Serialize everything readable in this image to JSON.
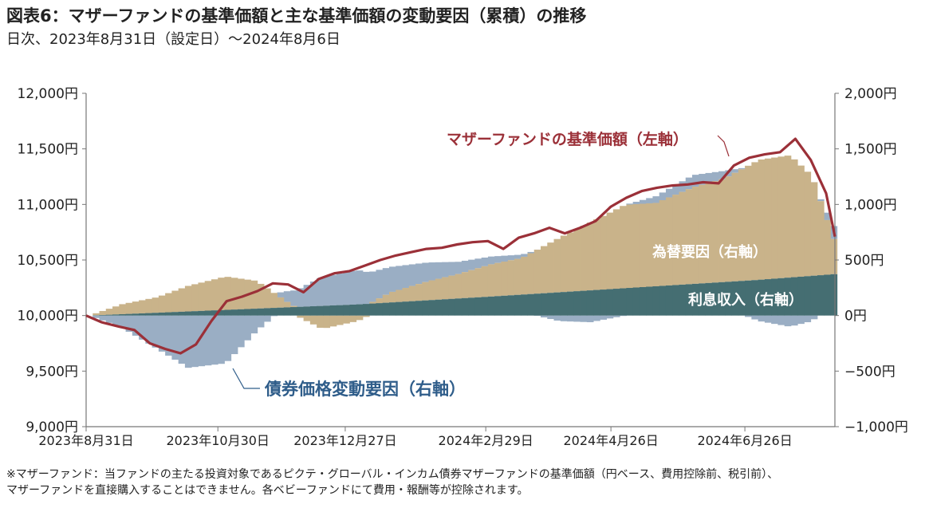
{
  "header": {
    "title": "図表6：マザーファンドの基準価額と主な基準価額の変動要因（累積）の推移",
    "subtitle": "日次、2023年8月31日（設定日）～2024年8月6日"
  },
  "footnote": {
    "line1": "※マザーファンド：当ファンドの主たる投資対象であるピクテ・グローバル・インカム債券マザーファンドの基準価額（円ベース、費用控除前、税引前）、",
    "line2": "マザーファンドを直接購入することはできません。各ベビーファンドにて費用・報酬等が控除されます。"
  },
  "colors": {
    "nav_line": "#9b3038",
    "fx": "#c9b38a",
    "bond": "#9aaec4",
    "interest": "#456e72",
    "bond_label": "#2f5d8a",
    "axis": "#777777"
  },
  "chart_data": {
    "type": "bar+line",
    "y_left": {
      "range": [
        9000,
        12000
      ],
      "ticks": [
        9000,
        9500,
        10000,
        10500,
        11000,
        11500,
        12000
      ],
      "tick_labels": [
        "9,000円",
        "9,500円",
        "10,000円",
        "10,500円",
        "11,000円",
        "11,500円",
        "12,000円"
      ]
    },
    "y_right": {
      "range": [
        -1000,
        2000
      ],
      "ticks": [
        -1000,
        -500,
        0,
        500,
        1000,
        1500,
        2000
      ],
      "tick_labels": [
        "−1,000円",
        "−500円",
        "0円",
        "500円",
        "1,000円",
        "1,500円",
        "2,000円"
      ]
    },
    "x_ticks": [
      "2023年8月31日",
      "2023年10月30日",
      "2023年12月27日",
      "2024年2月29日",
      "2024年4月26日",
      "2024年6月26日"
    ],
    "x_start": "2023-08-31",
    "x_end": "2024-08-06",
    "grid": false,
    "annotations": {
      "nav": "マザーファンドの基準価額（左軸）",
      "fx": "為替要因（右軸）",
      "interest": "利息収入（右軸）",
      "bond": "債券価格変動要因（右軸）"
    },
    "series": [
      {
        "name": "マザーファンドの基準価額（左軸）",
        "axis": "left",
        "dates": [
          "2023-08-31",
          "2023-09-07",
          "2023-09-15",
          "2023-09-22",
          "2023-09-29",
          "2023-10-06",
          "2023-10-13",
          "2023-10-20",
          "2023-10-27",
          "2023-11-03",
          "2023-11-10",
          "2023-11-17",
          "2023-11-24",
          "2023-12-01",
          "2023-12-08",
          "2023-12-15",
          "2023-12-22",
          "2023-12-29",
          "2024-01-05",
          "2024-01-12",
          "2024-01-19",
          "2024-01-26",
          "2024-02-02",
          "2024-02-09",
          "2024-02-16",
          "2024-02-23",
          "2024-03-01",
          "2024-03-08",
          "2024-03-15",
          "2024-03-22",
          "2024-03-29",
          "2024-04-05",
          "2024-04-12",
          "2024-04-19",
          "2024-04-26",
          "2024-05-03",
          "2024-05-10",
          "2024-05-17",
          "2024-05-24",
          "2024-05-31",
          "2024-06-07",
          "2024-06-14",
          "2024-06-21",
          "2024-06-28",
          "2024-07-05",
          "2024-07-12",
          "2024-07-19",
          "2024-07-26",
          "2024-08-02",
          "2024-08-06"
        ],
        "values": [
          10000,
          9940,
          9900,
          9870,
          9750,
          9700,
          9660,
          9740,
          9950,
          10130,
          10170,
          10220,
          10290,
          10280,
          10210,
          10330,
          10380,
          10400,
          10450,
          10500,
          10540,
          10570,
          10600,
          10610,
          10640,
          10660,
          10670,
          10600,
          10700,
          10740,
          10790,
          10740,
          10790,
          10850,
          10980,
          11060,
          11120,
          11150,
          11170,
          11180,
          11200,
          11190,
          11350,
          11420,
          11450,
          11470,
          11590,
          11400,
          11100,
          10710
        ]
      },
      {
        "name": "利息収入（右軸）",
        "axis": "right",
        "dates": [
          "2023-08-31",
          "2023-10-31",
          "2023-12-31",
          "2024-02-29",
          "2024-04-30",
          "2024-06-30",
          "2024-08-06"
        ],
        "values": [
          0,
          50,
          100,
          170,
          245,
          320,
          375
        ]
      },
      {
        "name": "為替要因（右軸）",
        "axis": "right",
        "dates": [
          "2023-08-31",
          "2023-09-15",
          "2023-10-01",
          "2023-10-15",
          "2023-11-01",
          "2023-11-15",
          "2023-12-01",
          "2023-12-15",
          "2023-12-31",
          "2024-01-15",
          "2024-02-01",
          "2024-02-15",
          "2024-03-01",
          "2024-03-15",
          "2024-04-01",
          "2024-04-15",
          "2024-05-01",
          "2024-05-15",
          "2024-06-01",
          "2024-06-15",
          "2024-07-01",
          "2024-07-15",
          "2024-07-25",
          "2024-08-06"
        ],
        "values": [
          0,
          90,
          140,
          230,
          300,
          250,
          20,
          -120,
          -50,
          90,
          170,
          220,
          290,
          330,
          490,
          610,
          750,
          750,
          870,
          930,
          1080,
          1100,
          900,
          200
        ]
      },
      {
        "name": "債券価格変動要因（右軸）",
        "axis": "right",
        "dates": [
          "2023-08-31",
          "2023-09-15",
          "2023-10-01",
          "2023-10-15",
          "2023-11-01",
          "2023-11-15",
          "2023-12-01",
          "2023-12-15",
          "2023-12-31",
          "2024-01-15",
          "2024-02-01",
          "2024-02-15",
          "2024-03-01",
          "2024-03-15",
          "2024-04-01",
          "2024-04-15",
          "2024-05-01",
          "2024-05-15",
          "2024-06-01",
          "2024-06-15",
          "2024-07-01",
          "2024-07-15",
          "2024-07-25",
          "2024-08-06"
        ],
        "values": [
          0,
          -110,
          -300,
          -470,
          -430,
          -140,
          130,
          260,
          310,
          230,
          170,
          110,
          70,
          30,
          -50,
          -60,
          0,
          60,
          110,
          70,
          -50,
          -100,
          -50,
          150
        ]
      }
    ]
  }
}
